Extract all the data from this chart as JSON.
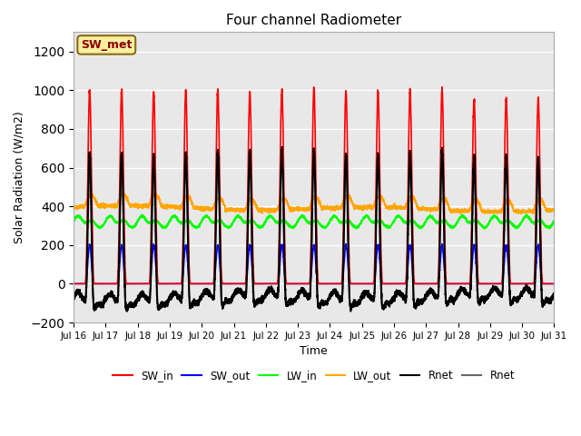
{
  "title": "Four channel Radiometer",
  "xlabel": "Time",
  "ylabel": "Solar Radiation (W/m2)",
  "ylim": [
    -200,
    1300
  ],
  "yticks": [
    -200,
    0,
    200,
    400,
    600,
    800,
    1000,
    1200
  ],
  "plot_bg_color": "#e8e8e8",
  "annotation_text": "SW_met",
  "annotation_bg": "#f5f0a0",
  "annotation_border": "#8b6914",
  "start_day": 16,
  "end_day": 31,
  "n_days": 15,
  "lines": [
    {
      "label": "SW_in",
      "color": "red",
      "lw": 1.2
    },
    {
      "label": "SW_out",
      "color": "blue",
      "lw": 1.2
    },
    {
      "label": "LW_in",
      "color": "lime",
      "lw": 1.2
    },
    {
      "label": "LW_out",
      "color": "orange",
      "lw": 1.2
    },
    {
      "label": "Rnet",
      "color": "black",
      "lw": 1.5
    },
    {
      "label": "Rnet",
      "color": "#555555",
      "lw": 1.2
    }
  ]
}
